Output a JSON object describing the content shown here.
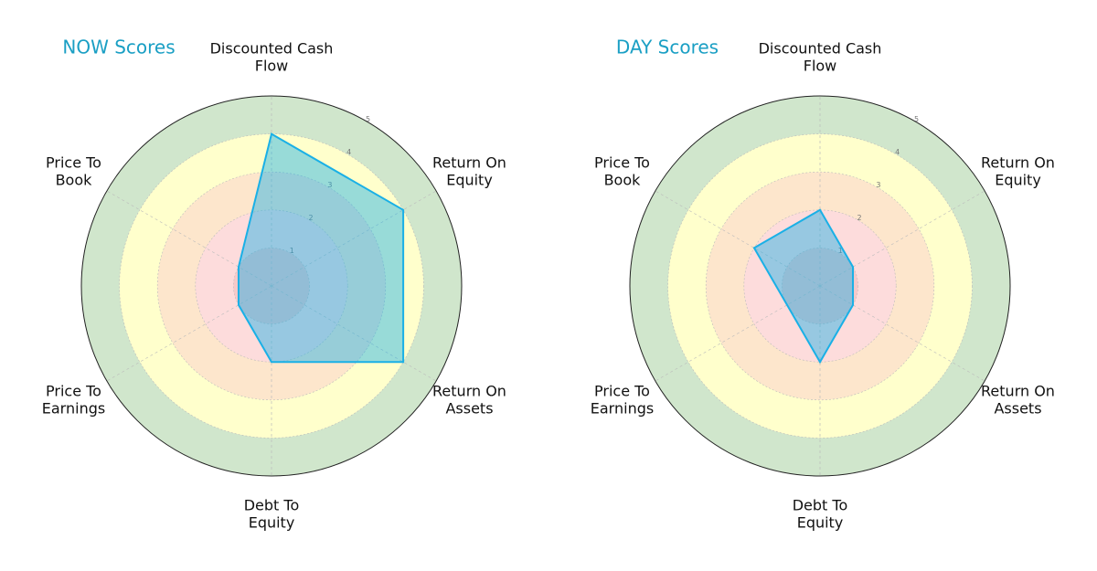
{
  "chart_data": [
    {
      "type": "radar",
      "title": "NOW Scores",
      "categories": [
        "Discounted Cash Flow",
        "Return On Equity",
        "Return On Assets",
        "Debt To Equity",
        "Price To Earnings",
        "Price To Book"
      ],
      "values": [
        4,
        4,
        4,
        2,
        1,
        1
      ],
      "color": "#1ab0e6",
      "rlim": [
        0,
        5
      ],
      "rticks": [
        1,
        2,
        3,
        4,
        5
      ]
    },
    {
      "type": "radar",
      "title": "DAY Scores",
      "categories": [
        "Discounted Cash Flow",
        "Return On Equity",
        "Return On Assets",
        "Debt To Equity",
        "Price To Earnings",
        "Price To Book"
      ],
      "values": [
        2,
        1,
        1,
        2,
        1,
        2
      ],
      "color": "#1ab0e6",
      "rlim": [
        0,
        5
      ],
      "rticks": [
        1,
        2,
        3,
        4,
        5
      ]
    }
  ]
}
